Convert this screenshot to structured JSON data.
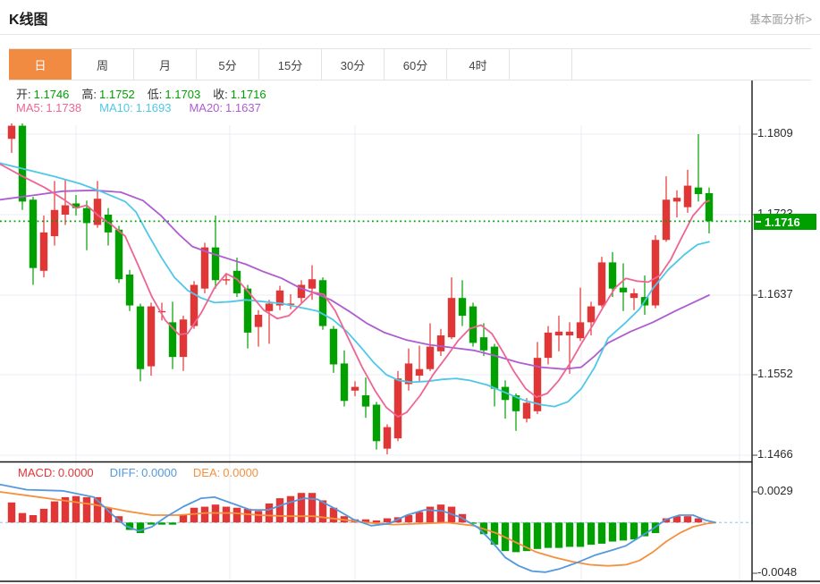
{
  "page": {
    "title": "K线图",
    "link_right": "基本面分析>"
  },
  "tabs": [
    {
      "label": "日",
      "selected": true
    },
    {
      "label": "周"
    },
    {
      "label": "月"
    },
    {
      "label": "5分"
    },
    {
      "label": "15分"
    },
    {
      "label": "30分"
    },
    {
      "label": "60分"
    },
    {
      "label": "4时"
    }
  ],
  "ohlc_legend": [
    {
      "label": "开:",
      "value": "1.1746"
    },
    {
      "label": "高:",
      "value": "1.1752"
    },
    {
      "label": "低:",
      "value": "1.1703"
    },
    {
      "label": "收:",
      "value": "1.1716"
    }
  ],
  "ma_legend": [
    {
      "label": "MA5:",
      "value": "1.1738",
      "color": "#ee6593"
    },
    {
      "label": "MA10:",
      "value": "1.1693",
      "color": "#4fc8e8"
    },
    {
      "label": "MA20:",
      "value": "1.1637",
      "color": "#ae5dd0"
    }
  ],
  "macd_legend": [
    {
      "label": "MACD:",
      "value": "0.0000",
      "color": "#e23636"
    },
    {
      "label": "DIFF:",
      "value": "0.0000",
      "color": "#5598dd"
    },
    {
      "label": "DEA:",
      "value": "0.0000",
      "color": "#f5903d"
    }
  ],
  "price_axis": {
    "ticks": [
      "1.1809",
      "1.1723",
      "1.1637",
      "1.1552",
      "1.1466"
    ],
    "current": {
      "label": "1.1716",
      "value": 1.1716
    }
  },
  "macd_axis": {
    "ticks": [
      "0.0029",
      "-0.0048"
    ]
  },
  "colors": {
    "up": "#e23636",
    "down": "#00a000",
    "ma5": "#ee6593",
    "ma10": "#4fc8e8",
    "ma20": "#ae5dd0",
    "diff": "#5598dd",
    "dea": "#f5903d",
    "grid": "#e9eef4",
    "axis": "#151515",
    "tick_text": "#2b2b2b",
    "zero_dash": "#9fd0f0",
    "price_dotted": "#00a000",
    "tab_active": "#f08b41",
    "badge": "#00a000"
  },
  "chart_data": {
    "type": "candlestick",
    "color_convention": "red = up, green = down (CN)",
    "price_ylim": [
      1.1466,
      1.1809
    ],
    "macd_ylim": [
      -0.0048,
      0.0029
    ],
    "grid": true,
    "candles": [
      [
        1.1804,
        1.1822,
        1.1789,
        1.1818
      ],
      [
        1.1818,
        1.1823,
        1.1728,
        1.1737
      ],
      [
        1.1739,
        1.1742,
        1.1648,
        1.1666
      ],
      [
        1.1663,
        1.1722,
        1.1656,
        1.1704
      ],
      [
        1.17,
        1.1759,
        1.169,
        1.1728
      ],
      [
        1.1723,
        1.1761,
        1.1712,
        1.1733
      ],
      [
        1.1735,
        1.1744,
        1.1722,
        1.173
      ],
      [
        1.173,
        1.1738,
        1.1685,
        1.1714
      ],
      [
        1.1712,
        1.1759,
        1.1709,
        1.174
      ],
      [
        1.1723,
        1.173,
        1.169,
        1.1704
      ],
      [
        1.1707,
        1.1711,
        1.165,
        1.1654
      ],
      [
        1.1659,
        1.1664,
        1.162,
        1.1626
      ],
      [
        1.1625,
        1.1628,
        1.1545,
        1.1558
      ],
      [
        1.1561,
        1.1629,
        1.1551,
        1.1625
      ],
      [
        1.162,
        1.1629,
        1.161,
        1.162
      ],
      [
        1.1608,
        1.163,
        1.1558,
        1.1571
      ],
      [
        1.1571,
        1.1615,
        1.1556,
        1.1611
      ],
      [
        1.1604,
        1.1652,
        1.1601,
        1.1648
      ],
      [
        1.1644,
        1.1693,
        1.1639,
        1.1688
      ],
      [
        1.1688,
        1.1722,
        1.1644,
        1.1653
      ],
      [
        1.1654,
        1.166,
        1.1648,
        1.1654
      ],
      [
        1.1663,
        1.1677,
        1.1635,
        1.1639
      ],
      [
        1.1644,
        1.1648,
        1.158,
        1.1597
      ],
      [
        1.1603,
        1.1621,
        1.1582,
        1.1616
      ],
      [
        1.162,
        1.1632,
        1.1585,
        1.1628
      ],
      [
        1.1626,
        1.1647,
        1.1621,
        1.1642
      ],
      [
        1.1628,
        1.1638,
        1.1622,
        1.1628
      ],
      [
        1.1634,
        1.1653,
        1.1629,
        1.1648
      ],
      [
        1.1644,
        1.1669,
        1.1632,
        1.1654
      ],
      [
        1.1653,
        1.1656,
        1.16,
        1.1604
      ],
      [
        1.1601,
        1.1604,
        1.1554,
        1.1563
      ],
      [
        1.1564,
        1.1578,
        1.1518,
        1.1524
      ],
      [
        1.1535,
        1.1545,
        1.1529,
        1.1539
      ],
      [
        1.153,
        1.1549,
        1.1506,
        1.1518
      ],
      [
        1.152,
        1.1523,
        1.1472,
        1.1481
      ],
      [
        1.1473,
        1.1499,
        1.1467,
        1.1496
      ],
      [
        1.1484,
        1.1556,
        1.1481,
        1.1548
      ],
      [
        1.1542,
        1.158,
        1.1535,
        1.1564
      ],
      [
        1.1551,
        1.1583,
        1.1545,
        1.1558
      ],
      [
        1.1558,
        1.1607,
        1.1556,
        1.1582
      ],
      [
        1.1577,
        1.1601,
        1.1572,
        1.1594
      ],
      [
        1.1592,
        1.1656,
        1.159,
        1.1634
      ],
      [
        1.1634,
        1.1653,
        1.1604,
        1.1615
      ],
      [
        1.1625,
        1.1629,
        1.1582,
        1.1586
      ],
      [
        1.1592,
        1.1607,
        1.1572,
        1.1578
      ],
      [
        1.1582,
        1.1585,
        1.1518,
        1.1537
      ],
      [
        1.1539,
        1.1546,
        1.1505,
        1.1525
      ],
      [
        1.153,
        1.1532,
        1.1492,
        1.1513
      ],
      [
        1.1505,
        1.1527,
        1.1501,
        1.1522
      ],
      [
        1.1513,
        1.1587,
        1.151,
        1.157
      ],
      [
        1.157,
        1.1604,
        1.1563,
        1.1597
      ],
      [
        1.1594,
        1.1615,
        1.1577,
        1.1598
      ],
      [
        1.1594,
        1.1608,
        1.1553,
        1.1598
      ],
      [
        1.1591,
        1.1645,
        1.1588,
        1.1608
      ],
      [
        1.1608,
        1.163,
        1.1594,
        1.1625
      ],
      [
        1.1626,
        1.1678,
        1.1624,
        1.1672
      ],
      [
        1.1672,
        1.1683,
        1.1635,
        1.1644
      ],
      [
        1.1645,
        1.1671,
        1.162,
        1.164
      ],
      [
        1.1634,
        1.1644,
        1.1621,
        1.1639
      ],
      [
        1.1635,
        1.1658,
        1.1616,
        1.1626
      ],
      [
        1.1626,
        1.1701,
        1.1623,
        1.1696
      ],
      [
        1.1696,
        1.1764,
        1.1694,
        1.1739
      ],
      [
        1.1737,
        1.1749,
        1.172,
        1.1741
      ],
      [
        1.1731,
        1.1771,
        1.1725,
        1.1754
      ],
      [
        1.1752,
        1.1809,
        1.1737,
        1.1745
      ],
      [
        1.1746,
        1.1752,
        1.1703,
        1.1716
      ]
    ],
    "ma5_points": [
      [
        0,
        1.1777
      ],
      [
        25,
        1.1764
      ],
      [
        50,
        1.1752
      ],
      [
        70,
        1.174
      ],
      [
        85,
        1.173
      ],
      [
        97,
        1.1733
      ],
      [
        110,
        1.1722
      ],
      [
        125,
        1.1712
      ],
      [
        140,
        1.17
      ],
      [
        155,
        1.1668
      ],
      [
        170,
        1.1635
      ],
      [
        185,
        1.161
      ],
      [
        200,
        1.1595
      ],
      [
        210,
        1.1596
      ],
      [
        225,
        1.1618
      ],
      [
        240,
        1.1645
      ],
      [
        253,
        1.166
      ],
      [
        265,
        1.1654
      ],
      [
        280,
        1.1638
      ],
      [
        295,
        1.1621
      ],
      [
        310,
        1.1612
      ],
      [
        323,
        1.1615
      ],
      [
        337,
        1.1628
      ],
      [
        350,
        1.164
      ],
      [
        362,
        1.1638
      ],
      [
        375,
        1.162
      ],
      [
        390,
        1.159
      ],
      [
        405,
        1.156
      ],
      [
        420,
        1.1534
      ],
      [
        432,
        1.1517
      ],
      [
        445,
        1.1507
      ],
      [
        455,
        1.1512
      ],
      [
        470,
        1.153
      ],
      [
        485,
        1.1553
      ],
      [
        500,
        1.1572
      ],
      [
        512,
        1.1588
      ],
      [
        525,
        1.1601
      ],
      [
        538,
        1.1605
      ],
      [
        550,
        1.1596
      ],
      [
        562,
        1.1577
      ],
      [
        575,
        1.1555
      ],
      [
        588,
        1.1537
      ],
      [
        600,
        1.1528
      ],
      [
        612,
        1.1532
      ],
      [
        625,
        1.1546
      ],
      [
        638,
        1.1565
      ],
      [
        650,
        1.1585
      ],
      [
        663,
        1.1605
      ],
      [
        675,
        1.1625
      ],
      [
        688,
        1.1645
      ],
      [
        700,
        1.1655
      ],
      [
        712,
        1.1652
      ],
      [
        725,
        1.1651
      ],
      [
        738,
        1.1658
      ],
      [
        750,
        1.1675
      ],
      [
        762,
        1.1698
      ],
      [
        775,
        1.1722
      ],
      [
        788,
        1.1736
      ],
      [
        793,
        1.1738
      ]
    ],
    "ma10_points": [
      [
        0,
        1.1778
      ],
      [
        30,
        1.1771
      ],
      [
        60,
        1.1764
      ],
      [
        90,
        1.1756
      ],
      [
        115,
        1.1747
      ],
      [
        140,
        1.1737
      ],
      [
        152,
        1.1726
      ],
      [
        165,
        1.1703
      ],
      [
        180,
        1.1678
      ],
      [
        195,
        1.1656
      ],
      [
        210,
        1.1642
      ],
      [
        225,
        1.1634
      ],
      [
        240,
        1.1629
      ],
      [
        258,
        1.163
      ],
      [
        275,
        1.1632
      ],
      [
        295,
        1.163
      ],
      [
        315,
        1.1628
      ],
      [
        335,
        1.1624
      ],
      [
        355,
        1.162
      ],
      [
        372,
        1.1611
      ],
      [
        388,
        1.1598
      ],
      [
        403,
        1.1582
      ],
      [
        418,
        1.1565
      ],
      [
        432,
        1.1552
      ],
      [
        446,
        1.1546
      ],
      [
        460,
        1.1544
      ],
      [
        478,
        1.1545
      ],
      [
        495,
        1.1547
      ],
      [
        510,
        1.1548
      ],
      [
        525,
        1.1546
      ],
      [
        545,
        1.1541
      ],
      [
        565,
        1.1533
      ],
      [
        585,
        1.1525
      ],
      [
        605,
        1.152
      ],
      [
        620,
        1.1518
      ],
      [
        635,
        1.1523
      ],
      [
        650,
        1.1537
      ],
      [
        665,
        1.156
      ],
      [
        680,
        1.1591
      ],
      [
        700,
        1.1608
      ],
      [
        715,
        1.1622
      ],
      [
        730,
        1.1644
      ],
      [
        747,
        1.1664
      ],
      [
        765,
        1.168
      ],
      [
        780,
        1.1691
      ],
      [
        793,
        1.1694
      ]
    ],
    "ma20_points": [
      [
        0,
        1.1739
      ],
      [
        40,
        1.1744
      ],
      [
        70,
        1.1748
      ],
      [
        105,
        1.1749
      ],
      [
        135,
        1.1747
      ],
      [
        160,
        1.1738
      ],
      [
        180,
        1.1722
      ],
      [
        200,
        1.1702
      ],
      [
        215,
        1.1689
      ],
      [
        235,
        1.1682
      ],
      [
        255,
        1.1676
      ],
      [
        275,
        1.167
      ],
      [
        295,
        1.1662
      ],
      [
        315,
        1.1655
      ],
      [
        335,
        1.1645
      ],
      [
        355,
        1.1638
      ],
      [
        370,
        1.1632
      ],
      [
        390,
        1.162
      ],
      [
        410,
        1.1607
      ],
      [
        430,
        1.1597
      ],
      [
        455,
        1.1589
      ],
      [
        480,
        1.1584
      ],
      [
        505,
        1.1581
      ],
      [
        530,
        1.1578
      ],
      [
        555,
        1.1572
      ],
      [
        580,
        1.1565
      ],
      [
        605,
        1.156
      ],
      [
        630,
        1.1558
      ],
      [
        650,
        1.156
      ],
      [
        665,
        1.1572
      ],
      [
        680,
        1.1586
      ],
      [
        705,
        1.1598
      ],
      [
        730,
        1.1608
      ],
      [
        755,
        1.162
      ],
      [
        775,
        1.1629
      ],
      [
        793,
        1.1637
      ]
    ],
    "macd": {
      "hist": [
        0.0019,
        0.0009,
        0.0007,
        0.0013,
        0.002,
        0.0024,
        0.0025,
        0.0024,
        0.0024,
        0.0014,
        0.0006,
        -0.0007,
        -0.001,
        -0.0002,
        -0.0002,
        -0.0002,
        0.0007,
        0.0014,
        0.0015,
        0.0017,
        0.0015,
        0.0014,
        0.0013,
        0.0011,
        0.0018,
        0.0023,
        0.0025,
        0.0028,
        0.0028,
        0.0021,
        0.0014,
        0.0006,
        0.0003,
        0.0003,
        0.0002,
        0.0004,
        0.0005,
        0.0007,
        0.001,
        0.0015,
        0.0017,
        0.0015,
        0.0008,
        -0.0001,
        -0.0011,
        -0.0021,
        -0.0027,
        -0.0028,
        -0.0027,
        -0.0025,
        -0.0024,
        -0.0024,
        -0.0023,
        -0.0023,
        -0.0021,
        -0.002,
        -0.0018,
        -0.0017,
        -0.0016,
        -0.0013,
        -0.001,
        0.0004,
        0.0006,
        0.0006,
        0.0004,
        0.0
      ],
      "diff_points": [
        [
          0,
          0.0036
        ],
        [
          30,
          0.0031
        ],
        [
          70,
          0.003
        ],
        [
          105,
          0.0024
        ],
        [
          125,
          0.0008
        ],
        [
          140,
          -0.0003
        ],
        [
          155,
          -0.0008
        ],
        [
          170,
          -0.0004
        ],
        [
          185,
          0.0005
        ],
        [
          205,
          0.0015
        ],
        [
          225,
          0.0023
        ],
        [
          240,
          0.0024
        ],
        [
          260,
          0.0018
        ],
        [
          280,
          0.0012
        ],
        [
          300,
          0.0012
        ],
        [
          320,
          0.0018
        ],
        [
          340,
          0.0023
        ],
        [
          355,
          0.0022
        ],
        [
          375,
          0.0013
        ],
        [
          395,
          0.0003
        ],
        [
          415,
          -0.0003
        ],
        [
          435,
          -0.0001
        ],
        [
          455,
          0.0007
        ],
        [
          475,
          0.0012
        ],
        [
          495,
          0.0011
        ],
        [
          515,
          0.0005
        ],
        [
          535,
          -0.0005
        ],
        [
          550,
          -0.0018
        ],
        [
          565,
          -0.0033
        ],
        [
          580,
          -0.0041
        ],
        [
          595,
          -0.0046
        ],
        [
          610,
          -0.0047
        ],
        [
          625,
          -0.0044
        ],
        [
          645,
          -0.0038
        ],
        [
          665,
          -0.0031
        ],
        [
          685,
          -0.0026
        ],
        [
          700,
          -0.0022
        ],
        [
          715,
          -0.0014
        ],
        [
          730,
          -0.0006
        ],
        [
          745,
          0.0003
        ],
        [
          760,
          0.0007
        ],
        [
          775,
          0.0007
        ],
        [
          790,
          0.0002
        ],
        [
          800,
          0.0
        ]
      ],
      "dea_points": [
        [
          0,
          0.0029
        ],
        [
          35,
          0.0025
        ],
        [
          70,
          0.0021
        ],
        [
          105,
          0.0017
        ],
        [
          140,
          0.0011
        ],
        [
          170,
          0.0007
        ],
        [
          200,
          0.0007
        ],
        [
          230,
          0.0009
        ],
        [
          260,
          0.0009
        ],
        [
          290,
          0.0007
        ],
        [
          320,
          0.0006
        ],
        [
          350,
          0.0006
        ],
        [
          380,
          0.0003
        ],
        [
          410,
          0.0
        ],
        [
          440,
          -0.0002
        ],
        [
          470,
          -0.0001
        ],
        [
          500,
          0.0
        ],
        [
          530,
          -0.0003
        ],
        [
          555,
          -0.001
        ],
        [
          580,
          -0.002
        ],
        [
          600,
          -0.0028
        ],
        [
          620,
          -0.0033
        ],
        [
          640,
          -0.0037
        ],
        [
          660,
          -0.004
        ],
        [
          680,
          -0.0041
        ],
        [
          700,
          -0.004
        ],
        [
          715,
          -0.0036
        ],
        [
          730,
          -0.0028
        ],
        [
          745,
          -0.0018
        ],
        [
          760,
          -0.001
        ],
        [
          775,
          -0.0004
        ],
        [
          790,
          -0.0001
        ],
        [
          800,
          0.0
        ]
      ]
    }
  }
}
